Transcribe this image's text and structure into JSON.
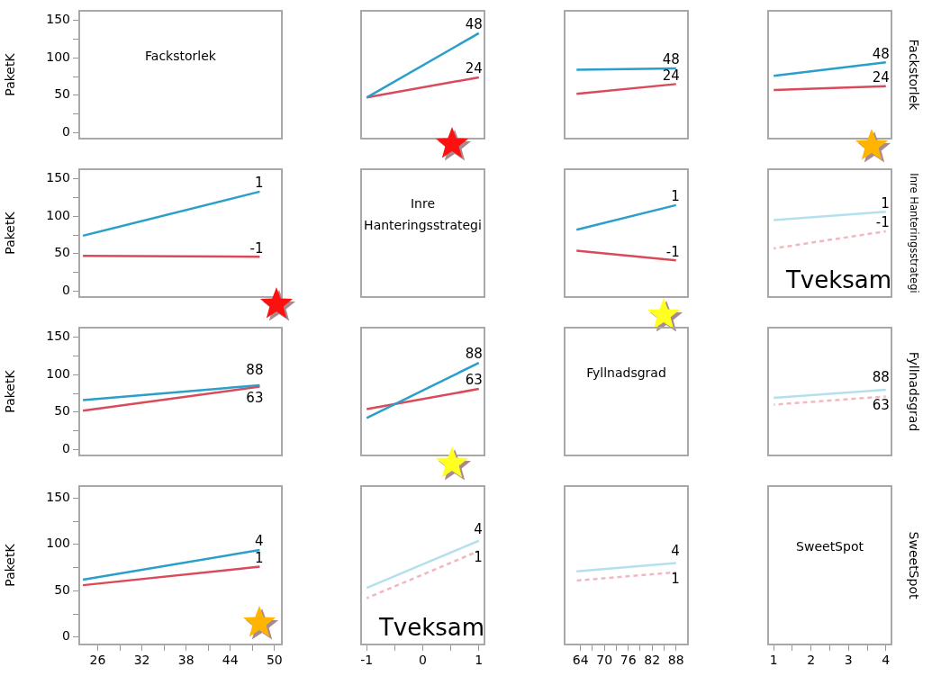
{
  "chart_data": [
    {
      "type": "line",
      "title": "Fackstorlek",
      "ylabel": "PaketK",
      "xlim": [
        23.5,
        51
      ],
      "ylim": [
        -8,
        163
      ],
      "yticks": [
        0,
        {
          "value": 25,
          "label": null
        },
        50,
        {
          "value": 75,
          "label": null
        },
        100,
        {
          "value": 125,
          "label": null
        },
        150
      ],
      "tick_labels": "y"
    },
    {
      "type": "line",
      "xlim": [
        -1.1,
        1.1
      ],
      "ylim": [
        -8,
        163
      ],
      "tick_labels": false,
      "series": [
        {
          "name": "48",
          "color": "#2a9fc9",
          "x": [
            -1,
            1
          ],
          "values": [
            47,
            133
          ]
        },
        {
          "name": "24",
          "color": "#d94a5a",
          "x": [
            -1,
            1
          ],
          "values": [
            47,
            74
          ]
        }
      ]
    },
    {
      "type": "line",
      "xlim": [
        60,
        91
      ],
      "ylim": [
        -8,
        163
      ],
      "tick_labels": false,
      "series": [
        {
          "name": "48",
          "color": "#2a9fc9",
          "x": [
            63,
            88
          ],
          "values": [
            84,
            86
          ]
        },
        {
          "name": "24",
          "color": "#d94a5a",
          "x": [
            63,
            88
          ],
          "values": [
            52,
            65
          ]
        }
      ]
    },
    {
      "type": "line",
      "y2label": "Fackstorlek",
      "xlim": [
        0.85,
        4.15
      ],
      "ylim": [
        -8,
        163
      ],
      "tick_labels": false,
      "series": [
        {
          "name": "48",
          "color": "#2a9fc9",
          "x": [
            1,
            4
          ],
          "values": [
            76,
            94
          ]
        },
        {
          "name": "24",
          "color": "#d94a5a",
          "x": [
            1,
            4
          ],
          "values": [
            57,
            62
          ]
        }
      ]
    },
    {
      "type": "line",
      "ylabel": "PaketK",
      "xlim": [
        23.5,
        51
      ],
      "ylim": [
        -8,
        163
      ],
      "yticks": [
        0,
        {
          "value": 25,
          "label": null
        },
        50,
        {
          "value": 75,
          "label": null
        },
        100,
        {
          "value": 125,
          "label": null
        },
        150
      ],
      "tick_labels": "y",
      "series": [
        {
          "name": "1",
          "color": "#2a9fc9",
          "x": [
            24,
            48
          ],
          "values": [
            74,
            133
          ]
        },
        {
          "name": "-1",
          "color": "#d94a5a",
          "x": [
            24,
            48
          ],
          "values": [
            47,
            46
          ]
        }
      ]
    },
    {
      "type": "other",
      "title": "Inre Hanteringsstrategi"
    },
    {
      "type": "line",
      "xlim": [
        60,
        91
      ],
      "ylim": [
        -8,
        163
      ],
      "tick_labels": false,
      "series": [
        {
          "name": "1",
          "color": "#2a9fc9",
          "x": [
            63,
            88
          ],
          "values": [
            82,
            115
          ]
        },
        {
          "name": "-1",
          "color": "#d94a5a",
          "x": [
            63,
            88
          ],
          "values": [
            54,
            41
          ]
        }
      ]
    },
    {
      "type": "line",
      "y2label": "Inre Hanteringsstrategi",
      "annotations": [
        "Tveksam"
      ],
      "xlim": [
        0.85,
        4.15
      ],
      "ylim": [
        -8,
        163
      ],
      "tick_labels": false,
      "series": [
        {
          "name": "1",
          "color": "#b4e0ee",
          "x": [
            1,
            4
          ],
          "values": [
            95,
            106
          ]
        },
        {
          "name": "-1",
          "color": "#f2b8c0",
          "line_style": "dashed",
          "x": [
            1,
            4
          ],
          "values": [
            57,
            80
          ]
        }
      ]
    },
    {
      "type": "line",
      "ylabel": "PaketK",
      "xlim": [
        23.5,
        51
      ],
      "ylim": [
        -8,
        163
      ],
      "yticks": [
        0,
        {
          "value": 25,
          "label": null
        },
        50,
        {
          "value": 75,
          "label": null
        },
        100,
        {
          "value": 125,
          "label": null
        },
        150
      ],
      "tick_labels": "y",
      "series": [
        {
          "name": "88",
          "color": "#2a9fc9",
          "x": [
            24,
            48
          ],
          "values": [
            66,
            86
          ]
        },
        {
          "name": "63",
          "color": "#d94a5a",
          "x": [
            24,
            48
          ],
          "values": [
            52,
            84
          ]
        }
      ]
    },
    {
      "type": "line",
      "xlim": [
        -1.1,
        1.1
      ],
      "ylim": [
        -8,
        163
      ],
      "tick_labels": false,
      "series": [
        {
          "name": "88",
          "color": "#2a9fc9",
          "x": [
            -1,
            1
          ],
          "values": [
            42,
            116
          ]
        },
        {
          "name": "63",
          "color": "#d94a5a",
          "x": [
            -1,
            1
          ],
          "values": [
            54,
            81
          ]
        }
      ]
    },
    {
      "type": "other",
      "title": "Fyllnadsgrad"
    },
    {
      "type": "line",
      "y2label": "Fyllnadsgrad",
      "xlim": [
        0.85,
        4.15
      ],
      "ylim": [
        -8,
        163
      ],
      "tick_labels": false,
      "series": [
        {
          "name": "88",
          "color": "#b4e0ee",
          "x": [
            1,
            4
          ],
          "values": [
            69,
            80
          ]
        },
        {
          "name": "63",
          "color": "#f2b8c0",
          "line_style": "dashed",
          "x": [
            1,
            4
          ],
          "values": [
            60,
            71
          ]
        }
      ]
    },
    {
      "type": "line",
      "ylabel": "PaketK",
      "xlim": [
        23.5,
        51
      ],
      "xticks": [
        26,
        {
          "value": 29,
          "label": null
        },
        32,
        {
          "value": 35,
          "label": null
        },
        38,
        {
          "value": 41,
          "label": null
        },
        44,
        {
          "value": 47,
          "label": null
        },
        50
      ],
      "ylim": [
        -8,
        163
      ],
      "yticks": [
        0,
        {
          "value": 25,
          "label": null
        },
        50,
        {
          "value": 75,
          "label": null
        },
        100,
        {
          "value": 125,
          "label": null
        },
        150
      ],
      "series": [
        {
          "name": "4",
          "color": "#2a9fc9",
          "x": [
            24,
            48
          ],
          "values": [
            62,
            94
          ]
        },
        {
          "name": "1",
          "color": "#d94a5a",
          "x": [
            24,
            48
          ],
          "values": [
            56,
            76
          ]
        }
      ]
    },
    {
      "type": "line",
      "annotations": [
        "Tveksam"
      ],
      "xlim": [
        -1.1,
        1.1
      ],
      "xticks": [
        -1,
        {
          "value": -0.5,
          "label": null
        },
        0,
        {
          "value": 0.5,
          "label": null
        },
        1
      ],
      "ylim": [
        -8,
        163
      ],
      "tick_labels": "x",
      "series": [
        {
          "name": "4",
          "color": "#b4e0ee",
          "x": [
            -1,
            1
          ],
          "values": [
            53,
            104
          ]
        },
        {
          "name": "1",
          "color": "#f2b8c0",
          "line_style": "dashed",
          "x": [
            -1,
            1
          ],
          "values": [
            42,
            93
          ]
        }
      ]
    },
    {
      "type": "line",
      "xlim": [
        60,
        91
      ],
      "xticks": [
        64,
        {
          "value": 67,
          "label": null
        },
        70,
        {
          "value": 73,
          "label": null
        },
        76,
        {
          "value": 79,
          "label": null
        },
        82,
        {
          "value": 85,
          "label": null
        },
        88
      ],
      "ylim": [
        -8,
        163
      ],
      "tick_labels": "x",
      "series": [
        {
          "name": "4",
          "color": "#b4e0ee",
          "x": [
            63,
            88
          ],
          "values": [
            71,
            80
          ]
        },
        {
          "name": "1",
          "color": "#f2b8c0",
          "line_style": "dashed",
          "x": [
            63,
            88
          ],
          "values": [
            61,
            70
          ]
        }
      ]
    },
    {
      "type": "line",
      "title": "SweetSpot",
      "y2label": "SweetSpot",
      "ylim": [
        -8,
        163
      ],
      "xlim": [
        0.85,
        4.15
      ],
      "xticks": [
        1,
        {
          "value": 1.5,
          "label": null
        },
        2,
        {
          "value": 2.5,
          "label": null
        },
        3,
        {
          "value": 3.5,
          "label": null
        },
        4
      ],
      "tick_labels": "x"
    }
  ]
}
